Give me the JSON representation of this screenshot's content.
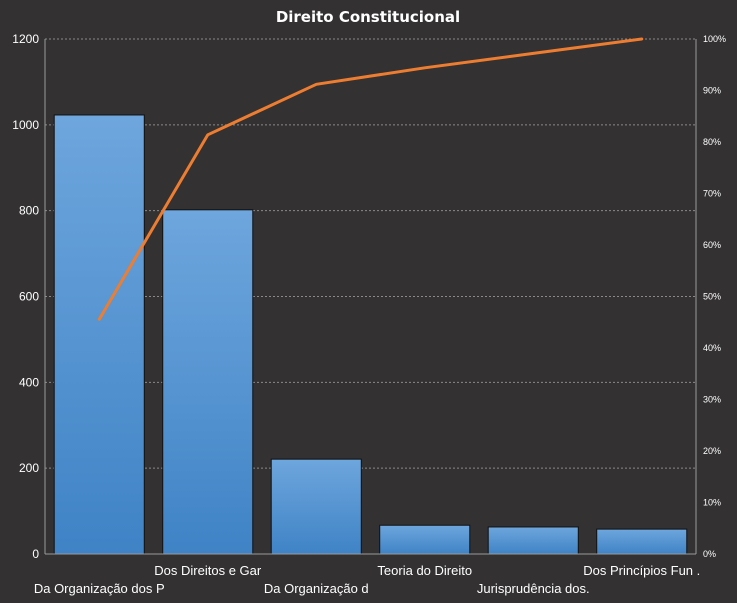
{
  "chart_data": {
    "type": "bar",
    "title": "Direito Constitucional",
    "categories": [
      "Da Organização dos P",
      "Dos Direitos e Gar",
      "Da Organização d",
      "Teoria do Direito",
      "Jurisprudência dos.",
      "Dos Princípios Fun ."
    ],
    "series": [
      {
        "type": "bar",
        "values": [
          1023,
          802,
          221,
          67,
          63,
          58
        ],
        "color": "#5b9bd5"
      },
      {
        "type": "line",
        "axis": "right",
        "values": [
          0.456,
          0.814,
          0.912,
          0.944,
          0.972,
          1.0
        ],
        "color": "#ed7d31"
      }
    ],
    "ylim": [
      0,
      1200
    ],
    "yticks": [
      "0",
      "200",
      "400",
      "600",
      "800",
      "1000",
      "1200"
    ],
    "y2lim": [
      0,
      1
    ],
    "y2ticks": [
      "0%",
      "10%",
      "20%",
      "30%",
      "40%",
      "50%",
      "60%",
      "70%",
      "80%",
      "90%",
      "100%"
    ],
    "grid": true,
    "legend": "none",
    "background": "#333131"
  }
}
